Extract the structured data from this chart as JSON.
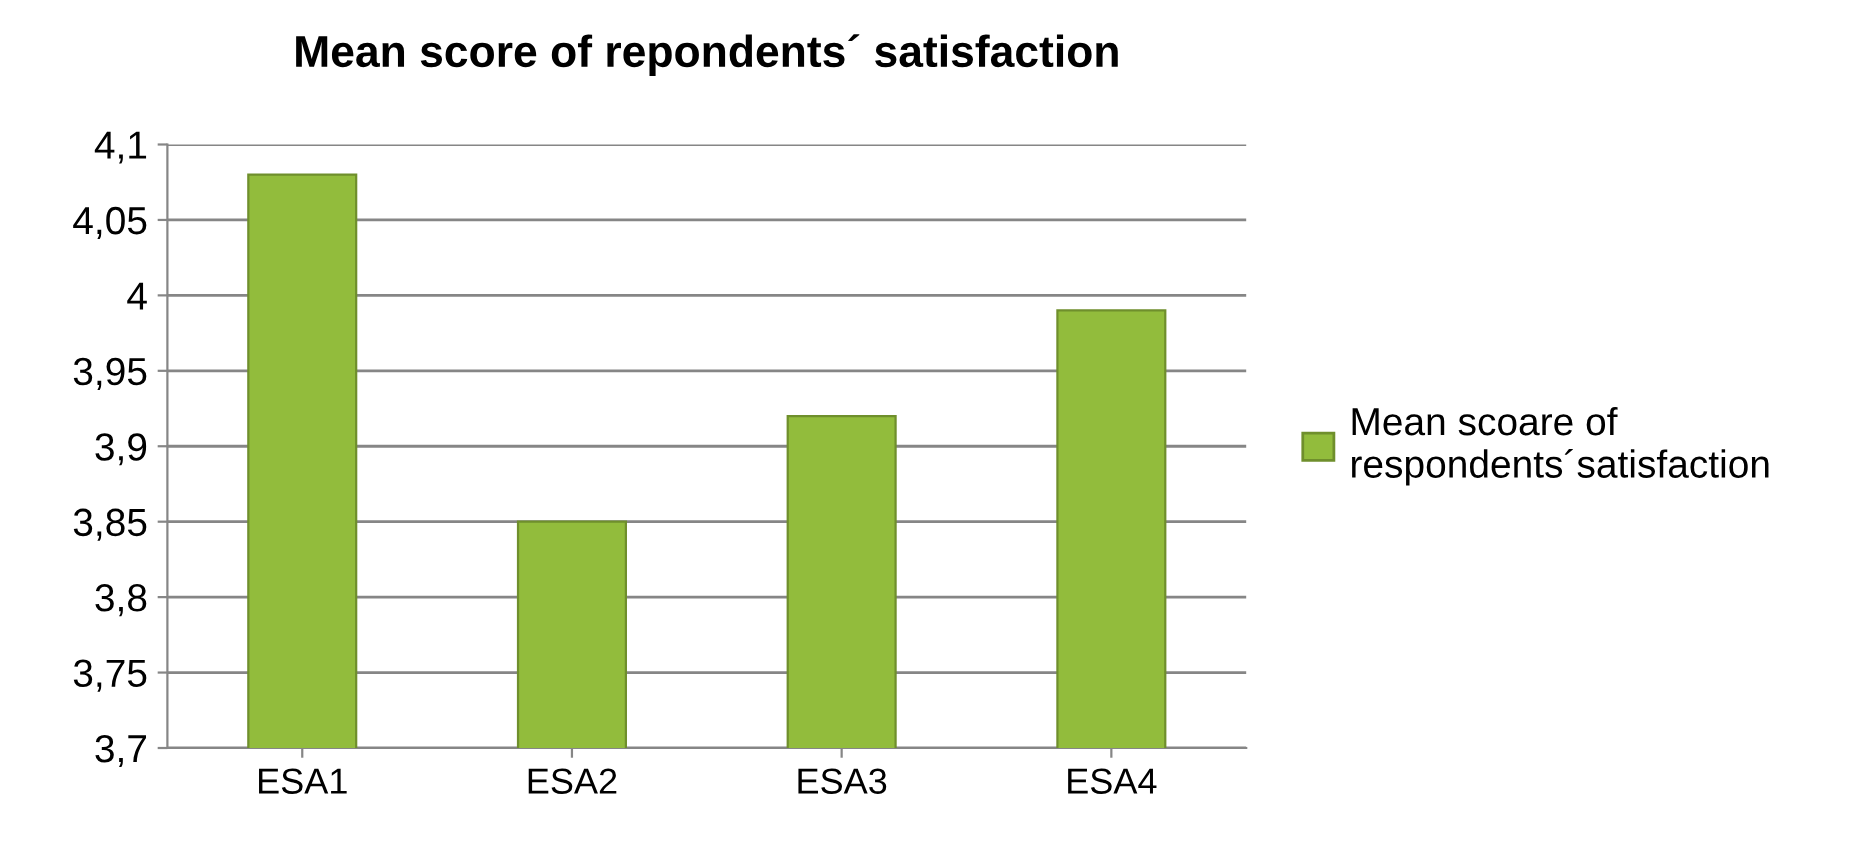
{
  "chart_data": {
    "type": "bar",
    "title": "Mean score of repondents´ satisfaction",
    "categories": [
      "ESA1",
      "ESA2",
      "ESA3",
      "ESA4"
    ],
    "series": [
      {
        "name": "Mean scoare of\nrespondents´satisfaction",
        "color": "#92bc3c",
        "values": [
          4.08,
          3.85,
          3.92,
          3.99
        ]
      }
    ],
    "ylim": [
      3.7,
      4.1
    ],
    "yticks": [
      {
        "value": 3.7,
        "label": "3,7"
      },
      {
        "value": 3.75,
        "label": "3,75"
      },
      {
        "value": 3.8,
        "label": "3,8"
      },
      {
        "value": 3.85,
        "label": "3,85"
      },
      {
        "value": 3.9,
        "label": "3,9"
      },
      {
        "value": 3.95,
        "label": "3,95"
      },
      {
        "value": 4.0,
        "label": "4"
      },
      {
        "value": 4.05,
        "label": "4,05"
      },
      {
        "value": 4.1,
        "label": "4,1"
      }
    ],
    "grid": "y",
    "legend": "right"
  }
}
